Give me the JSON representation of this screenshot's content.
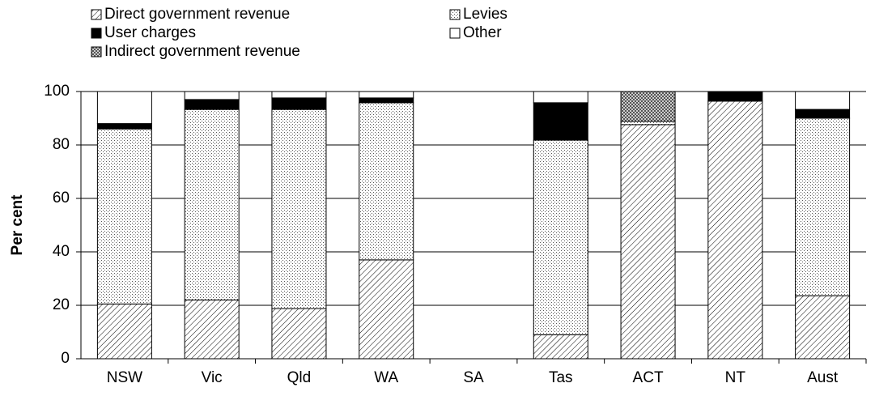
{
  "chart_data": {
    "type": "stacked_bar",
    "y_label": "Per cent",
    "categories": [
      "NSW",
      "Vic",
      "Qld",
      "WA",
      "SA",
      "Tas",
      "ACT",
      "NT",
      "Aust"
    ],
    "series": [
      {
        "name": "Direct government revenue",
        "color": "#000000",
        "pattern": "hatch",
        "values": [
          20.5,
          22,
          18.8,
          37,
          null,
          9,
          87.6,
          96.4,
          23.6
        ]
      },
      {
        "name": "Levies",
        "color": "#000000",
        "pattern": "dots",
        "values": [
          65.5,
          71.3,
          74.5,
          58.8,
          null,
          72.8,
          1.2,
          0,
          66.4
        ]
      },
      {
        "name": "User charges",
        "color": "#000000",
        "pattern": "solid",
        "values": [
          2,
          3.7,
          4.3,
          1.8,
          null,
          14,
          0,
          3.6,
          3.3
        ]
      },
      {
        "name": "Indirect government revenue",
        "color": "#000000",
        "pattern": "crosshatch",
        "values": [
          0,
          0,
          0,
          0,
          null,
          0,
          11.2,
          0,
          0
        ]
      },
      {
        "name": "Other",
        "color": "#000000",
        "pattern": "none",
        "values": [
          12,
          3,
          2.4,
          2.4,
          null,
          4.2,
          0,
          0,
          6.7
        ]
      }
    ],
    "ylim": [
      0,
      100
    ],
    "yticks": [
      0,
      20,
      40,
      60,
      80,
      100
    ],
    "grid": true
  }
}
